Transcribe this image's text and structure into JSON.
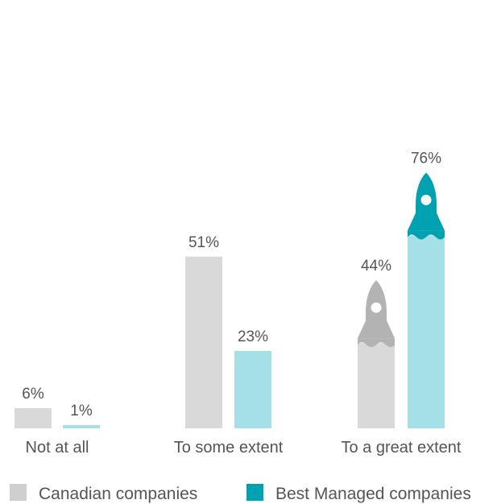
{
  "chart_data": {
    "type": "bar",
    "title": "",
    "xlabel": "",
    "ylabel": "",
    "ylim": [
      0,
      80
    ],
    "grid": false,
    "legend_position": "bottom",
    "categories": [
      "Not at all",
      "To some extent",
      "To a great extent"
    ],
    "series": [
      {
        "name": "Canadian companies",
        "values": [
          6,
          51,
          44
        ],
        "labels": [
          "6%",
          "51%",
          "44%"
        ],
        "color": "#d9d9d9",
        "rocket_color": "#b3b3b3"
      },
      {
        "name": "Best Managed companies",
        "values": [
          1,
          23,
          76
        ],
        "labels": [
          "1%",
          "23%",
          "76%"
        ],
        "color": "#a6e0e7",
        "rocket_color": "#00a1b0"
      }
    ],
    "annotations": "rocket icons on top of the 'To a great extent' bars"
  }
}
